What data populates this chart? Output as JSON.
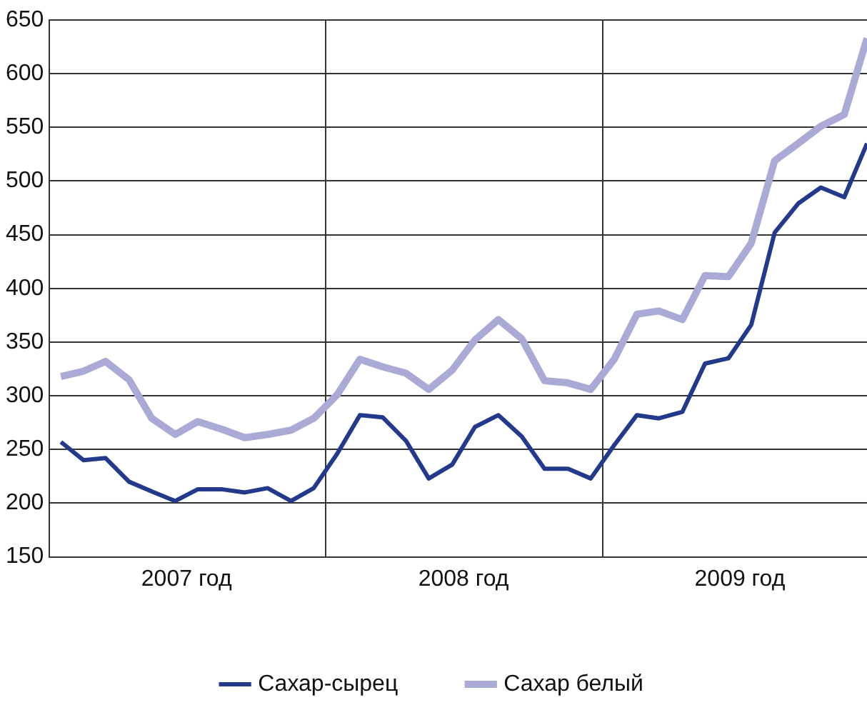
{
  "chart_data": {
    "type": "line",
    "x": [
      "2007-01-16",
      "2007-02-15",
      "2007-03-16",
      "2007-04-16",
      "2007-05-16",
      "2007-06-16",
      "2007-07-16",
      "2007-08-16",
      "2007-09-16",
      "2007-10-16",
      "2007-11-16",
      "2007-12-16",
      "2008-01-16",
      "2008-02-15",
      "2008-03-16",
      "2008-04-16",
      "2008-05-16",
      "2008-06-16",
      "2008-07-16",
      "2008-08-16",
      "2008-09-16",
      "2008-10-16",
      "2008-11-16",
      "2008-12-16",
      "2009-01-16",
      "2009-02-15",
      "2009-03-16",
      "2009-04-16",
      "2009-05-16",
      "2009-06-16",
      "2009-07-16",
      "2009-08-16",
      "2009-09-16",
      "2009-10-16",
      "2009-11-16",
      "2009-12-16"
    ],
    "xlim": [
      "2007-01-01",
      "2009-12-16"
    ],
    "xticks": [
      {
        "value": "2007-01-01",
        "label": null
      },
      {
        "value": "2007-07-01",
        "label": "2007 год"
      },
      {
        "value": "2008-01-01",
        "label": null
      },
      {
        "value": "2008-07-01",
        "label": "2008 год"
      },
      {
        "value": "2009-01-01",
        "label": null
      },
      {
        "value": "2009-07-01",
        "label": "2009 год"
      }
    ],
    "ylim": [
      150,
      650
    ],
    "yticks": [
      150,
      200,
      250,
      300,
      350,
      400,
      450,
      500,
      550,
      600,
      650
    ],
    "grid": true,
    "legend": "bottom",
    "marker": "none",
    "line_style": "solid",
    "series": [
      {
        "name": "Сахар-сырец",
        "color": "#233a8c",
        "values": [
          257,
          240,
          242,
          220,
          211,
          202,
          213,
          213,
          210,
          214,
          202,
          214,
          246,
          282,
          280,
          258,
          223,
          236,
          271,
          282,
          262,
          232,
          232,
          223,
          254,
          282,
          279,
          285,
          330,
          335,
          366,
          452,
          479,
          494,
          485,
          535
        ]
      },
      {
        "name": "Сахар белый",
        "color": "#aaaad6",
        "values": [
          318,
          323,
          332,
          315,
          279,
          264,
          276,
          269,
          261,
          264,
          268,
          279,
          301,
          334,
          327,
          321,
          306,
          324,
          352,
          371,
          353,
          314,
          312,
          306,
          334,
          376,
          379,
          371,
          412,
          411,
          442,
          519,
          535,
          551,
          562,
          633
        ]
      }
    ]
  }
}
